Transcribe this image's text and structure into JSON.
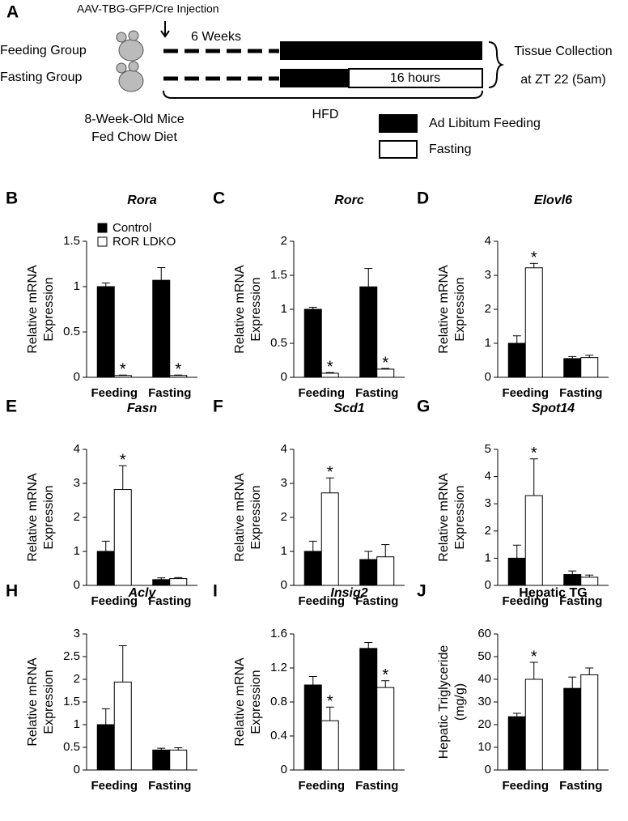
{
  "diagram": {
    "panel": "A",
    "injection": "AAV-TBG-GFP/Cre Injection",
    "duration": "6 Weeks",
    "feeding_group": "Feeding Group",
    "fasting_group": "Fasting Group",
    "fasting_time": "16 hours",
    "collection": [
      "Tissue Collection",
      "at ZT 22 (5am)"
    ],
    "mice": [
      "8-Week-Old Mice",
      "Fed Chow Diet"
    ],
    "diet": "HFD",
    "legend": [
      "Ad Libitum Feeding",
      "Fasting"
    ]
  },
  "chart_data": [
    {
      "type": "bar",
      "panel": "B",
      "title": "Rora",
      "title_style": "italic",
      "ylabel": [
        "Relative mRNA",
        "Expression"
      ],
      "categories": [
        "Feeding",
        "Fasting"
      ],
      "legend": true,
      "series": [
        {
          "name": "Control",
          "color": "#000000",
          "values": [
            1.0,
            1.07
          ],
          "errors": [
            0.04,
            0.14
          ]
        },
        {
          "name": "ROR LDKO",
          "color": "#ffffff",
          "values": [
            0.02,
            0.02
          ],
          "errors": [
            0.005,
            0.005
          ],
          "sig": [
            "*",
            "*"
          ]
        }
      ],
      "ylim": [
        0,
        1.5
      ],
      "yticks": [
        0,
        0.5,
        1,
        1.5
      ]
    },
    {
      "type": "bar",
      "panel": "C",
      "title": "Rorc",
      "title_style": "italic",
      "ylabel": [
        "Relative mRNA",
        "Expression"
      ],
      "categories": [
        "Feeding",
        "Fasting"
      ],
      "series": [
        {
          "color": "#000000",
          "values": [
            1.0,
            1.33
          ],
          "errors": [
            0.03,
            0.27
          ]
        },
        {
          "color": "#ffffff",
          "values": [
            0.06,
            0.12
          ],
          "errors": [
            0.01,
            0.01
          ],
          "sig": [
            "*",
            "*"
          ]
        }
      ],
      "ylim": [
        0,
        2
      ],
      "yticks": [
        0,
        0.5,
        1,
        1.5,
        2
      ]
    },
    {
      "type": "bar",
      "panel": "D",
      "title": "Elovl6",
      "title_style": "italic",
      "ylabel": [
        "Relative mRNA",
        "Expression"
      ],
      "categories": [
        "Feeding",
        "Fasting"
      ],
      "series": [
        {
          "color": "#000000",
          "values": [
            1.0,
            0.55
          ],
          "errors": [
            0.22,
            0.06
          ]
        },
        {
          "color": "#ffffff",
          "values": [
            3.22,
            0.58
          ],
          "errors": [
            0.13,
            0.07
          ],
          "sig": [
            "*",
            null
          ]
        }
      ],
      "ylim": [
        0,
        4
      ],
      "yticks": [
        0,
        1,
        2,
        3,
        4
      ]
    },
    {
      "type": "bar",
      "panel": "E",
      "title": "Fasn",
      "title_style": "italic",
      "ylabel": [
        "Relative mRNA",
        "Expression"
      ],
      "categories": [
        "Feeding",
        "Fasting"
      ],
      "series": [
        {
          "color": "#000000",
          "values": [
            1.0,
            0.17
          ],
          "errors": [
            0.3,
            0.05
          ]
        },
        {
          "color": "#ffffff",
          "values": [
            2.82,
            0.2
          ],
          "errors": [
            0.7,
            0.03
          ],
          "sig": [
            "*",
            null
          ]
        }
      ],
      "ylim": [
        0,
        4
      ],
      "yticks": [
        0,
        1,
        2,
        3,
        4
      ]
    },
    {
      "type": "bar",
      "panel": "F",
      "title": "Scd1",
      "title_style": "italic",
      "ylabel": [
        "Relative mRNA",
        "Expression"
      ],
      "categories": [
        "Feeding",
        "Fasting"
      ],
      "series": [
        {
          "color": "#000000",
          "values": [
            1.0,
            0.76
          ],
          "errors": [
            0.3,
            0.24
          ]
        },
        {
          "color": "#ffffff",
          "values": [
            2.72,
            0.84
          ],
          "errors": [
            0.44,
            0.36
          ],
          "sig": [
            "*",
            null
          ]
        }
      ],
      "ylim": [
        0,
        4
      ],
      "yticks": [
        0,
        1,
        2,
        3,
        4
      ]
    },
    {
      "type": "bar",
      "panel": "G",
      "title": "Spot14",
      "title_style": "italic",
      "ylabel": [
        "Relative mRNA",
        "Expression"
      ],
      "categories": [
        "Feeding",
        "Fasting"
      ],
      "series": [
        {
          "color": "#000000",
          "values": [
            1.0,
            0.4
          ],
          "errors": [
            0.48,
            0.13
          ]
        },
        {
          "color": "#ffffff",
          "values": [
            3.3,
            0.3
          ],
          "errors": [
            1.35,
            0.08
          ],
          "sig": [
            "*",
            null
          ]
        }
      ],
      "ylim": [
        0,
        5
      ],
      "yticks": [
        0,
        1,
        2,
        3,
        4,
        5
      ]
    },
    {
      "type": "bar",
      "panel": "H",
      "title": "Acly",
      "title_style": "italic",
      "ylabel": [
        "Relative mRNA",
        "Expression"
      ],
      "categories": [
        "Feeding",
        "Fasting"
      ],
      "series": [
        {
          "color": "#000000",
          "values": [
            1.0,
            0.44
          ],
          "errors": [
            0.35,
            0.04
          ]
        },
        {
          "color": "#ffffff",
          "values": [
            1.94,
            0.44
          ],
          "errors": [
            0.8,
            0.05
          ]
        }
      ],
      "ylim": [
        0,
        3
      ],
      "yticks": [
        0,
        0.5,
        1,
        1.5,
        2,
        2.5,
        3
      ]
    },
    {
      "type": "bar",
      "panel": "I",
      "title": "Insig2",
      "title_style": "italic",
      "ylabel": [
        "Relative mRNA",
        "Expression"
      ],
      "categories": [
        "Feeding",
        "Fasting"
      ],
      "series": [
        {
          "color": "#000000",
          "values": [
            1.0,
            1.43
          ],
          "errors": [
            0.1,
            0.07
          ]
        },
        {
          "color": "#ffffff",
          "values": [
            0.58,
            0.97
          ],
          "errors": [
            0.16,
            0.08
          ],
          "sig": [
            "*",
            "*"
          ]
        }
      ],
      "ylim": [
        0,
        1.6
      ],
      "yticks": [
        0,
        0.4,
        0.8,
        1.2,
        1.6
      ]
    },
    {
      "type": "bar",
      "panel": "J",
      "title": "Hepatic TG",
      "title_style": "normal",
      "ylabel": [
        "Hepatic Triglyceride",
        "(mg/g)"
      ],
      "categories": [
        "Feeding",
        "Fasting"
      ],
      "series": [
        {
          "color": "#000000",
          "values": [
            23.5,
            36
          ],
          "errors": [
            1.5,
            5
          ]
        },
        {
          "color": "#ffffff",
          "values": [
            40,
            42
          ],
          "errors": [
            7.5,
            3
          ],
          "sig": [
            "*",
            null
          ]
        }
      ],
      "ylim": [
        0,
        60
      ],
      "yticks": [
        0,
        10,
        20,
        30,
        40,
        50,
        60
      ]
    }
  ]
}
